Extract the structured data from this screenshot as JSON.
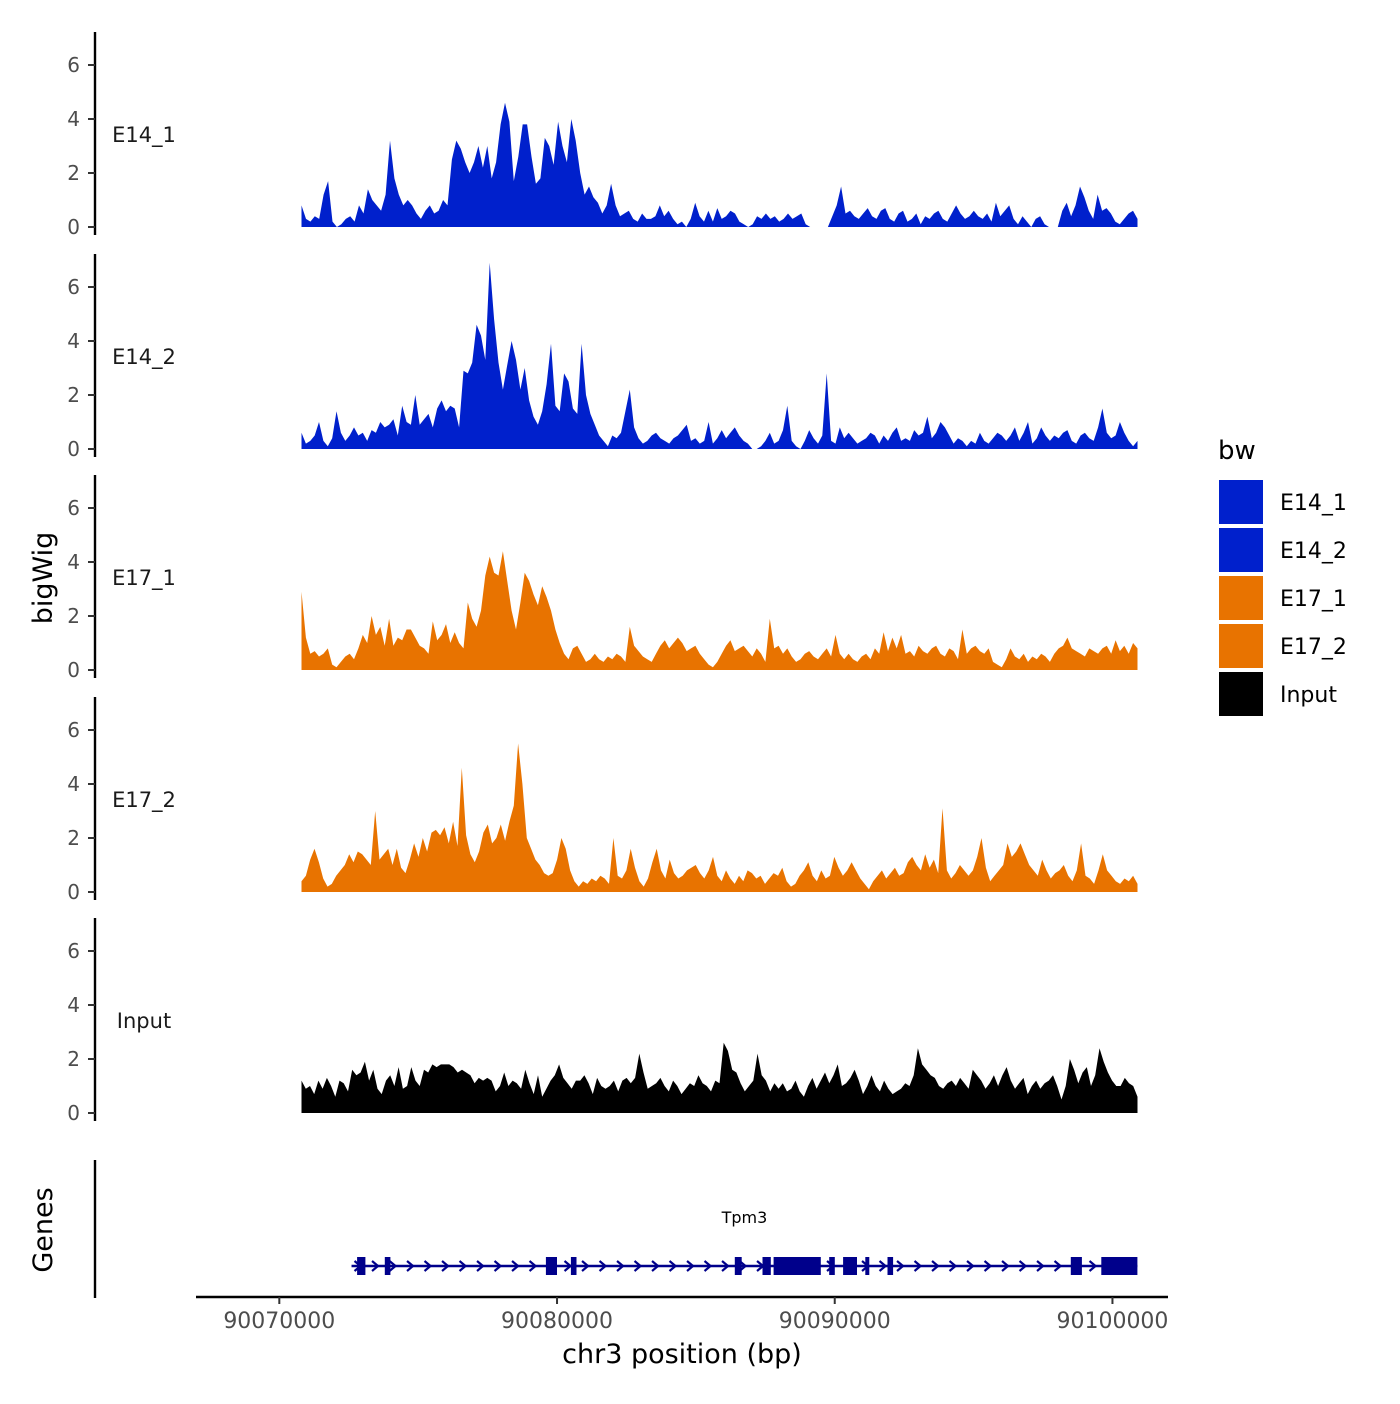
{
  "chart_data": {
    "type": "area",
    "title": "",
    "xlabel": "chr3 position (bp)",
    "ylabel": "bigWig",
    "gene_track_label": "Genes",
    "xlim": [
      90067000,
      90102000
    ],
    "x_ticks": [
      90070000,
      90080000,
      90090000,
      90100000
    ],
    "x_tick_labels": [
      "90070000",
      "90080000",
      "90090000",
      "90100000"
    ],
    "ylim": [
      0,
      7.4
    ],
    "y_ticks": [
      0,
      2,
      4,
      6
    ],
    "y_tick_labels": [
      "0",
      "2",
      "4",
      "6"
    ],
    "signal_range": [
      90070800,
      90100900
    ],
    "legend": {
      "title": "bw",
      "position": "right",
      "entries": [
        {
          "label": "E14_1",
          "color": "#0020CC"
        },
        {
          "label": "E14_2",
          "color": "#0020CC"
        },
        {
          "label": "E17_1",
          "color": "#E87300"
        },
        {
          "label": "E17_2",
          "color": "#E87300"
        },
        {
          "label": "Input",
          "color": "#000000"
        }
      ]
    },
    "series": [
      {
        "name": "E14_1",
        "color": "#0020CC",
        "values": [
          0.8,
          0.3,
          0.2,
          0.4,
          0.3,
          1.2,
          1.7,
          0.2,
          0,
          0.1,
          0.3,
          0.4,
          0.2,
          0.8,
          0.5,
          1.4,
          1.0,
          0.8,
          0.6,
          1.2,
          3.2,
          1.8,
          1.2,
          0.8,
          1.0,
          0.8,
          0.5,
          0.3,
          0.6,
          0.8,
          0.5,
          0.6,
          1.0,
          0.8,
          2.5,
          3.2,
          2.9,
          2.4,
          2.0,
          2.4,
          3.0,
          2.2,
          3.0,
          1.8,
          2.4,
          3.8,
          4.6,
          3.9,
          1.7,
          2.6,
          3.8,
          3.8,
          2.6,
          1.6,
          1.8,
          3.3,
          3.0,
          2.3,
          3.9,
          3.0,
          2.4,
          4.0,
          3.2,
          2.0,
          1.2,
          1.5,
          1.1,
          0.9,
          0.5,
          0.8,
          1.6,
          0.8,
          0.4,
          0.5,
          0.6,
          0.3,
          0.2,
          0.5,
          0.3,
          0.3,
          0.4,
          0.8,
          0.4,
          0.6,
          0.3,
          0.1,
          0.2,
          0,
          0.3,
          0.9,
          0.4,
          0.2,
          0.6,
          0.2,
          0.7,
          0.3,
          0.4,
          0.6,
          0.5,
          0.2,
          0.1,
          0,
          0.1,
          0.4,
          0.3,
          0.5,
          0.3,
          0.4,
          0.2,
          0.3,
          0.5,
          0.3,
          0.4,
          0.5,
          0.1,
          0,
          0,
          0,
          0,
          0,
          0.4,
          0.8,
          1.5,
          0.5,
          0.6,
          0.4,
          0.3,
          0.5,
          0.7,
          0.4,
          0.3,
          0.6,
          0.7,
          0.3,
          0.2,
          0.5,
          0.6,
          0.2,
          0.3,
          0.5,
          0.1,
          0.4,
          0.3,
          0.5,
          0.6,
          0.3,
          0.2,
          0.5,
          0.8,
          0.5,
          0.3,
          0.4,
          0.6,
          0.4,
          0.3,
          0.5,
          0.2,
          0.9,
          0.4,
          0.6,
          0.8,
          0.3,
          0.1,
          0.4,
          0.2,
          0,
          0.3,
          0.4,
          0.1,
          0,
          0,
          0,
          0.6,
          0.9,
          0.4,
          0.8,
          1.5,
          1.1,
          0.6,
          0.3,
          1.2,
          0.6,
          0.7,
          0.5,
          0.2,
          0.1,
          0.3,
          0.5,
          0.6,
          0.3
        ]
      },
      {
        "name": "E14_2",
        "color": "#0020CC",
        "values": [
          0.6,
          0.2,
          0.3,
          0.5,
          1.0,
          0.3,
          0.1,
          0.4,
          1.4,
          0.6,
          0.3,
          0.5,
          0.8,
          0.5,
          0.6,
          0.3,
          0.7,
          0.6,
          1.0,
          0.8,
          0.9,
          1.1,
          0.5,
          1.6,
          1.0,
          0.9,
          2.0,
          0.9,
          1.1,
          1.3,
          0.8,
          1.5,
          1.8,
          1.4,
          1.6,
          1.5,
          0.8,
          2.9,
          2.8,
          3.2,
          4.6,
          4.2,
          3.3,
          6.9,
          4.8,
          3.2,
          2.2,
          3.1,
          4.0,
          3.3,
          2.2,
          3.0,
          1.8,
          1.2,
          0.9,
          1.4,
          2.4,
          3.9,
          1.6,
          1.4,
          2.8,
          2.5,
          1.5,
          1.3,
          3.9,
          2.0,
          1.3,
          0.9,
          0.5,
          0.3,
          0.1,
          0.5,
          0.4,
          0.6,
          1.4,
          2.2,
          0.8,
          0.4,
          0.2,
          0.3,
          0.5,
          0.6,
          0.4,
          0.3,
          0.2,
          0.4,
          0.5,
          0.7,
          0.9,
          0.3,
          0.4,
          0.2,
          0.3,
          1.0,
          0.2,
          0.4,
          0.7,
          0.4,
          0.6,
          0.8,
          0.5,
          0.3,
          0.2,
          0,
          0,
          0.1,
          0.3,
          0.6,
          0.2,
          0.3,
          0.7,
          1.6,
          0.3,
          0.1,
          0,
          0.3,
          0.7,
          0.4,
          0.2,
          0.5,
          2.8,
          0.3,
          0.2,
          0.8,
          0.4,
          0.6,
          0.4,
          0.2,
          0.3,
          0.4,
          0.6,
          0.5,
          0.2,
          0.5,
          0.3,
          0.6,
          0.8,
          0.3,
          0.4,
          0.3,
          0.7,
          0.5,
          0.6,
          1.2,
          0.4,
          0.6,
          1.0,
          0.8,
          0.5,
          0.2,
          0.4,
          0.3,
          0.1,
          0.3,
          0.2,
          0.6,
          0.3,
          0.2,
          0.4,
          0.6,
          0.5,
          0.3,
          0.5,
          0.8,
          0.3,
          0.6,
          1.0,
          0.2,
          0.4,
          0.8,
          0.5,
          0.3,
          0.5,
          0.4,
          0.6,
          0.7,
          0.3,
          0.2,
          0.5,
          0.6,
          0.4,
          0.3,
          0.8,
          1.5,
          0.6,
          0.4,
          0.5,
          1.0,
          0.6,
          0.3,
          0.1,
          0.3
        ]
      },
      {
        "name": "E17_1",
        "color": "#E87300",
        "values": [
          2.9,
          1.2,
          0.6,
          0.7,
          0.5,
          0.6,
          0.8,
          0.2,
          0.1,
          0.3,
          0.5,
          0.6,
          0.4,
          0.8,
          1.3,
          1.0,
          2.0,
          1.3,
          1.6,
          0.9,
          1.9,
          0.9,
          1.2,
          1.1,
          1.5,
          1.5,
          1.2,
          0.9,
          0.8,
          0.6,
          1.8,
          1.1,
          1.3,
          1.7,
          1.0,
          1.4,
          1.0,
          0.8,
          2.5,
          1.9,
          1.6,
          2.2,
          3.5,
          4.2,
          3.6,
          3.5,
          4.4,
          3.3,
          2.2,
          1.5,
          2.5,
          3.6,
          3.3,
          2.8,
          2.4,
          3.1,
          2.7,
          2.2,
          1.5,
          1.0,
          0.6,
          0.4,
          0.8,
          0.9,
          0.6,
          0.3,
          0.4,
          0.6,
          0.4,
          0.3,
          0.5,
          0.4,
          0.6,
          0.5,
          0.3,
          1.6,
          0.9,
          0.7,
          0.5,
          0.4,
          0.3,
          0.6,
          0.9,
          1.1,
          0.8,
          1.0,
          1.2,
          1.0,
          0.7,
          0.8,
          0.9,
          0.6,
          0.4,
          0.2,
          0.1,
          0.3,
          0.6,
          0.9,
          1.1,
          0.7,
          0.8,
          0.9,
          0.7,
          0.5,
          0.8,
          0.6,
          0.3,
          1.9,
          0.8,
          0.9,
          0.6,
          0.8,
          0.5,
          0.3,
          0.4,
          0.6,
          0.7,
          0.5,
          0.4,
          0.6,
          0.8,
          0.5,
          1.3,
          0.6,
          0.4,
          0.6,
          0.4,
          0.3,
          0.5,
          0.6,
          0.4,
          0.8,
          0.6,
          1.4,
          0.7,
          1.2,
          0.8,
          1.3,
          0.6,
          0.7,
          0.5,
          0.9,
          0.7,
          0.6,
          0.8,
          0.9,
          0.6,
          0.5,
          0.8,
          0.7,
          0.4,
          1.5,
          0.6,
          0.8,
          0.9,
          0.7,
          0.6,
          0.8,
          0.3,
          0.2,
          0.1,
          0.4,
          0.8,
          0.5,
          0.4,
          0.6,
          0.3,
          0.5,
          0.4,
          0.6,
          0.5,
          0.3,
          0.6,
          0.8,
          0.9,
          1.2,
          0.8,
          0.7,
          0.6,
          0.5,
          0.8,
          0.7,
          0.6,
          0.8,
          0.9,
          0.6,
          1.1,
          0.7,
          0.9,
          0.6,
          1.0,
          0.8
        ]
      },
      {
        "name": "E17_2",
        "color": "#E87300",
        "values": [
          0.4,
          0.6,
          1.2,
          1.6,
          1.1,
          0.5,
          0.2,
          0.3,
          0.6,
          0.8,
          1.0,
          1.4,
          1.1,
          1.5,
          1.4,
          1.2,
          1.0,
          3.0,
          1.2,
          1.4,
          1.6,
          1.0,
          1.6,
          0.9,
          0.7,
          1.2,
          1.8,
          1.3,
          2.0,
          1.5,
          2.2,
          2.3,
          2.1,
          2.4,
          1.8,
          2.6,
          1.7,
          4.6,
          2.1,
          1.4,
          1.1,
          1.5,
          2.2,
          2.5,
          1.8,
          2.0,
          2.5,
          1.9,
          2.6,
          3.2,
          5.5,
          4.0,
          2.0,
          1.6,
          1.2,
          1.0,
          0.7,
          0.6,
          0.7,
          1.2,
          2.0,
          1.6,
          0.8,
          0.4,
          0.2,
          0.4,
          0.3,
          0.5,
          0.4,
          0.6,
          0.5,
          0.3,
          2.0,
          0.6,
          0.5,
          0.8,
          1.6,
          0.9,
          0.4,
          0.2,
          0.5,
          1.1,
          1.6,
          0.8,
          0.5,
          1.2,
          0.7,
          0.5,
          0.6,
          0.8,
          0.9,
          1.0,
          0.7,
          0.5,
          0.8,
          1.3,
          0.6,
          0.4,
          0.8,
          0.5,
          0.3,
          0.6,
          0.4,
          0.8,
          0.7,
          0.5,
          0.6,
          0.3,
          0.5,
          0.7,
          0.6,
          0.9,
          0.4,
          0.2,
          0.3,
          0.6,
          0.8,
          1.1,
          0.6,
          0.4,
          0.8,
          0.5,
          0.6,
          1.3,
          0.9,
          0.6,
          0.8,
          1.1,
          0.8,
          0.5,
          0.3,
          0.1,
          0.4,
          0.6,
          0.8,
          0.5,
          0.7,
          0.9,
          0.6,
          0.7,
          1.1,
          1.3,
          1.0,
          0.8,
          1.4,
          0.9,
          1.2,
          0.7,
          3.1,
          0.8,
          0.5,
          0.7,
          1.0,
          0.8,
          0.6,
          0.8,
          1.3,
          2.0,
          0.9,
          0.4,
          0.6,
          0.8,
          1.0,
          1.8,
          1.3,
          1.5,
          1.8,
          1.4,
          1.0,
          0.8,
          0.6,
          1.2,
          0.8,
          0.5,
          0.7,
          0.8,
          1.0,
          0.6,
          0.4,
          0.8,
          1.8,
          0.6,
          0.5,
          0.3,
          0.8,
          1.4,
          0.8,
          0.6,
          0.4,
          0.3,
          0.5,
          0.4,
          0.6,
          0.3
        ]
      },
      {
        "name": "Input",
        "color": "#000000",
        "values": [
          1.2,
          0.9,
          1.0,
          0.7,
          1.2,
          0.9,
          1.3,
          1.0,
          0.6,
          1.2,
          1.1,
          0.8,
          1.6,
          1.4,
          1.5,
          1.9,
          1.2,
          1.6,
          0.9,
          0.7,
          1.2,
          1.4,
          1.0,
          1.7,
          0.9,
          1.0,
          1.7,
          1.2,
          1.0,
          1.6,
          1.5,
          1.8,
          1.7,
          1.8,
          1.8,
          1.8,
          1.7,
          1.5,
          1.6,
          1.5,
          1.4,
          1.1,
          1.3,
          1.2,
          1.3,
          1.2,
          0.8,
          1.0,
          1.5,
          1.0,
          1.2,
          1.1,
          0.9,
          1.6,
          1.1,
          0.7,
          1.4,
          0.6,
          0.9,
          1.2,
          1.4,
          1.8,
          1.3,
          1.1,
          0.9,
          1.2,
          1.2,
          1.4,
          1.1,
          0.7,
          1.3,
          1.0,
          0.9,
          1.0,
          1.2,
          0.8,
          1.2,
          1.3,
          1.1,
          1.3,
          2.2,
          1.5,
          0.9,
          1.0,
          1.1,
          1.3,
          1.0,
          0.8,
          1.2,
          1.0,
          0.7,
          0.9,
          1.1,
          1.0,
          1.4,
          1.1,
          1.0,
          0.8,
          1.2,
          1.1,
          2.6,
          2.3,
          1.6,
          1.5,
          1.1,
          0.8,
          1.0,
          1.2,
          2.2,
          1.4,
          1.2,
          0.8,
          1.1,
          0.9,
          1.1,
          0.8,
          0.9,
          1.2,
          0.8,
          0.6,
          1.0,
          1.3,
          0.9,
          1.2,
          1.5,
          1.1,
          1.4,
          1.8,
          1.0,
          1.1,
          1.3,
          1.6,
          1.2,
          0.7,
          1.0,
          1.4,
          1.0,
          0.8,
          1.2,
          0.9,
          0.7,
          0.8,
          0.9,
          1.1,
          1.0,
          1.4,
          2.4,
          1.8,
          1.6,
          1.4,
          1.3,
          1.0,
          0.9,
          1.1,
          1.2,
          1.0,
          1.3,
          1.1,
          0.9,
          1.6,
          1.4,
          1.2,
          0.9,
          1.1,
          1.4,
          1.0,
          1.4,
          1.7,
          1.2,
          0.9,
          1.1,
          1.3,
          0.7,
          1.0,
          1.2,
          0.9,
          1.1,
          1.2,
          1.4,
          1.0,
          0.5,
          1.0,
          2.0,
          1.6,
          1.1,
          1.5,
          1.7,
          1.0,
          1.4,
          2.4,
          1.9,
          1.5,
          1.2,
          1.0,
          1.0,
          1.3,
          1.1,
          1.0,
          0.6
        ]
      }
    ],
    "gene": {
      "name": "Tpm3",
      "color": "#00008B",
      "strand": "+",
      "start": 90072600,
      "end": 90100900,
      "exons": [
        [
          90072800,
          90073100
        ],
        [
          90073800,
          90074000
        ],
        [
          90079600,
          90080000
        ],
        [
          90080500,
          90080700
        ],
        [
          90086400,
          90086650
        ],
        [
          90087400,
          90087700
        ],
        [
          90087800,
          90089500
        ],
        [
          90089800,
          90090000
        ],
        [
          90090300,
          90090800
        ],
        [
          90091100,
          90091200
        ],
        [
          90091900,
          90092100
        ],
        [
          90098500,
          90098900
        ],
        [
          90099600,
          90100900
        ]
      ]
    }
  }
}
